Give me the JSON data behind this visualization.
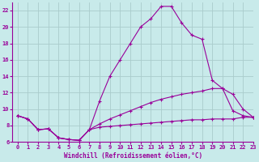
{
  "bg_color": "#c8eaea",
  "grid_color": "#aacccc",
  "line_color": "#990099",
  "xlim": [
    -0.5,
    23
  ],
  "ylim": [
    6,
    23
  ],
  "xticks": [
    0,
    1,
    2,
    3,
    4,
    5,
    6,
    7,
    8,
    9,
    10,
    11,
    12,
    13,
    14,
    15,
    16,
    17,
    18,
    19,
    20,
    21,
    22,
    23
  ],
  "yticks": [
    6,
    8,
    10,
    12,
    14,
    16,
    18,
    20,
    22
  ],
  "xlabel": "Windchill (Refroidissement éolien,°C)",
  "series": [
    {
      "x": [
        0,
        1,
        2,
        3,
        4,
        5,
        6,
        7,
        8,
        9,
        10,
        11,
        12,
        13,
        14,
        15,
        16,
        17,
        18,
        19,
        20,
        21,
        22,
        23
      ],
      "y": [
        9.2,
        8.8,
        7.5,
        7.6,
        6.5,
        6.3,
        6.2,
        7.5,
        11.0,
        14.0,
        16.0,
        18.0,
        20.0,
        21.0,
        22.5,
        22.5,
        20.5,
        19.0,
        18.5,
        13.5,
        12.5,
        9.8,
        9.2,
        9.0
      ]
    },
    {
      "x": [
        0,
        1,
        2,
        3,
        4,
        5,
        6,
        7,
        8,
        9,
        10,
        11,
        12,
        13,
        14,
        15,
        16,
        17,
        18,
        19,
        20,
        21,
        22,
        23
      ],
      "y": [
        9.2,
        8.8,
        7.5,
        7.6,
        6.5,
        6.3,
        6.2,
        7.5,
        8.2,
        8.8,
        9.3,
        9.8,
        10.3,
        10.8,
        11.2,
        11.5,
        11.8,
        12.0,
        12.2,
        12.5,
        12.5,
        11.8,
        10.0,
        9.0
      ]
    },
    {
      "x": [
        0,
        1,
        2,
        3,
        4,
        5,
        6,
        7,
        8,
        9,
        10,
        11,
        12,
        13,
        14,
        15,
        16,
        17,
        18,
        19,
        20,
        21,
        22,
        23
      ],
      "y": [
        9.2,
        8.8,
        7.5,
        7.6,
        6.5,
        6.3,
        6.2,
        7.5,
        7.8,
        7.9,
        8.0,
        8.1,
        8.2,
        8.3,
        8.4,
        8.5,
        8.6,
        8.7,
        8.7,
        8.8,
        8.8,
        8.8,
        9.0,
        9.0
      ]
    }
  ]
}
